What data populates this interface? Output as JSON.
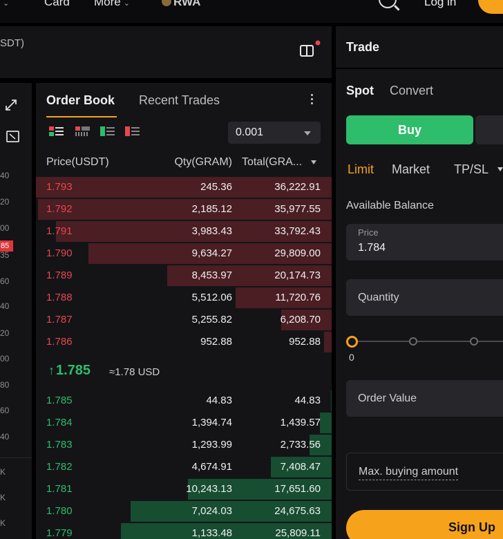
{
  "topnav": {
    "items": [
      {
        "label": "Card",
        "has_chevron": false
      },
      {
        "label": "More",
        "has_chevron": true
      }
    ],
    "brand_label": "RWA",
    "login_label": "Log in",
    "accent": "#f7a21b"
  },
  "symbol": {
    "pair_fragment": "SDT)"
  },
  "chart_axis": {
    "ticks": [
      "40",
      "20",
      "00",
      "35",
      "60",
      "40",
      "20",
      "00",
      "80",
      "60",
      "40",
      "K",
      "K",
      "K"
    ],
    "price_tag": "85"
  },
  "orderbook": {
    "tabs": [
      {
        "label": "Order Book",
        "active": true
      },
      {
        "label": "Recent Trades",
        "active": false
      }
    ],
    "precision": "0.001",
    "columns": [
      "Price(USDT)",
      "Qty(GRAM)",
      "Total(GRA..."
    ],
    "asks": [
      {
        "price": "1.793",
        "qty": "245.36",
        "total": "36,222.91",
        "qty_depth": 0.0068,
        "total_depth": 1.0
      },
      {
        "price": "1.792",
        "qty": "2,185.12",
        "total": "35,977.55",
        "qty_depth": 0.06,
        "total_depth": 0.993
      },
      {
        "price": "1.791",
        "qty": "3,983.43",
        "total": "33,792.43",
        "qty_depth": 0.11,
        "total_depth": 0.933
      },
      {
        "price": "1.790",
        "qty": "9,634.27",
        "total": "29,809.00",
        "qty_depth": 0.266,
        "total_depth": 0.823
      },
      {
        "price": "1.789",
        "qty": "8,453.97",
        "total": "20,174.73",
        "qty_depth": 0.233,
        "total_depth": 0.557
      },
      {
        "price": "1.788",
        "qty": "5,512.06",
        "total": "11,720.76",
        "qty_depth": 0.152,
        "total_depth": 0.324
      },
      {
        "price": "1.787",
        "qty": "5,255.82",
        "total": "6,208.70",
        "qty_depth": 0.145,
        "total_depth": 0.171
      },
      {
        "price": "1.786",
        "qty": "952.88",
        "total": "952.88",
        "qty_depth": 0.026,
        "total_depth": 0.026
      }
    ],
    "last_price": "1.785",
    "last_price_usd": "≈1.78 USD",
    "bids": [
      {
        "price": "1.785",
        "qty": "44.83",
        "total": "44.83",
        "qty_depth": 0.0012,
        "total_depth": 0.0012
      },
      {
        "price": "1.784",
        "qty": "1,394.74",
        "total": "1,439.57",
        "qty_depth": 0.0385,
        "total_depth": 0.0397
      },
      {
        "price": "1.783",
        "qty": "1,293.99",
        "total": "2,733.56",
        "qty_depth": 0.0357,
        "total_depth": 0.0755
      },
      {
        "price": "1.782",
        "qty": "4,674.91",
        "total": "7,408.47",
        "qty_depth": 0.129,
        "total_depth": 0.205
      },
      {
        "price": "1.781",
        "qty": "10,243.13",
        "total": "17,651.60",
        "qty_depth": 0.283,
        "total_depth": 0.487
      },
      {
        "price": "1.780",
        "qty": "7,024.03",
        "total": "24,675.63",
        "qty_depth": 0.194,
        "total_depth": 0.681
      },
      {
        "price": "1.779",
        "qty": "1,133.48",
        "total": "25,809.11",
        "qty_depth": 0.031,
        "total_depth": 0.713
      }
    ],
    "ask_color": "#e5484d",
    "bid_color": "#2ebd6b"
  },
  "trade": {
    "title": "Trade",
    "tabs": [
      "Spot",
      "Convert"
    ],
    "buy_label": "Buy",
    "order_types": [
      "Limit",
      "Market",
      "TP/SL"
    ],
    "available_balance_label": "Available Balance",
    "price_label": "Price",
    "price_value": "1.784",
    "quantity_placeholder": "Quantity",
    "slider_value": "0",
    "slider_fraction": 0,
    "order_value_placeholder": "Order Value",
    "max_buying_label": "Max. buying amount",
    "signup_label": "Sign Up"
  }
}
